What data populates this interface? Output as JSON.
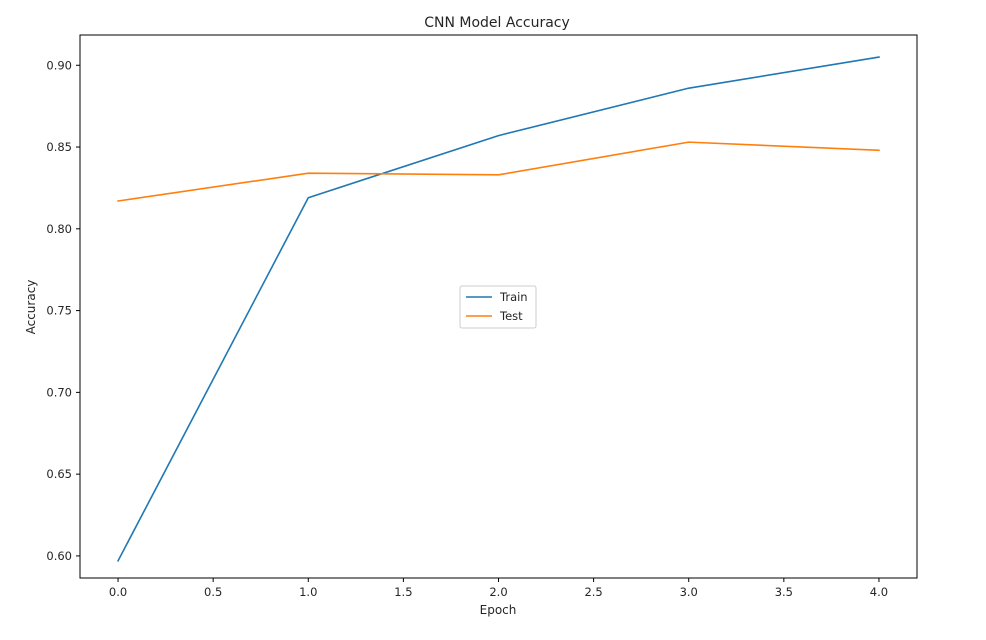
{
  "chart_data": {
    "type": "line",
    "title": "CNN Model Accuracy",
    "xlabel": "Epoch",
    "ylabel": "Accuracy",
    "x": [
      0,
      1,
      2,
      3,
      4
    ],
    "series": [
      {
        "name": "Train",
        "color": "#1f77b4",
        "values": [
          0.597,
          0.819,
          0.857,
          0.886,
          0.905
        ]
      },
      {
        "name": "Test",
        "color": "#ff7f0e",
        "values": [
          0.817,
          0.834,
          0.833,
          0.853,
          0.848
        ]
      }
    ],
    "xlim": [
      -0.2,
      4.2
    ],
    "ylim": [
      0.5865,
      0.9185
    ],
    "xticks": [
      0.0,
      0.5,
      1.0,
      1.5,
      2.0,
      2.5,
      3.0,
      3.5,
      4.0
    ],
    "xtick_labels": [
      "0.0",
      "0.5",
      "1.0",
      "1.5",
      "2.0",
      "2.5",
      "3.0",
      "3.5",
      "4.0"
    ],
    "yticks": [
      0.6,
      0.65,
      0.7,
      0.75,
      0.8,
      0.85,
      0.9
    ],
    "ytick_labels": [
      "0.60",
      "0.65",
      "0.70",
      "0.75",
      "0.80",
      "0.85",
      "0.90"
    ],
    "grid": false,
    "legend_position": "center"
  }
}
